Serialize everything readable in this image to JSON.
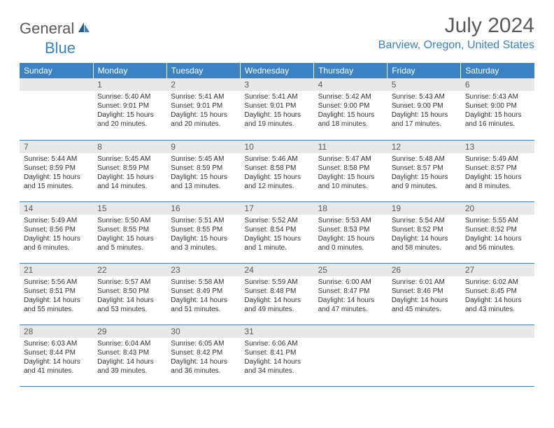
{
  "logo": {
    "text1": "General",
    "text2": "Blue"
  },
  "title": "July 2024",
  "location": "Barview, Oregon, United States",
  "colors": {
    "header_bg": "#3b82c4",
    "header_text": "#ffffff",
    "daynum_bg": "#e8e8e8",
    "border": "#3b82c4",
    "text_gray": "#5a5a5a"
  },
  "weekdays": [
    "Sunday",
    "Monday",
    "Tuesday",
    "Wednesday",
    "Thursday",
    "Friday",
    "Saturday"
  ],
  "weeks": [
    [
      {
        "n": "",
        "sr": "",
        "ss": "",
        "dl": ""
      },
      {
        "n": "1",
        "sr": "5:40 AM",
        "ss": "9:01 PM",
        "dl": "15 hours and 20 minutes."
      },
      {
        "n": "2",
        "sr": "5:41 AM",
        "ss": "9:01 PM",
        "dl": "15 hours and 20 minutes."
      },
      {
        "n": "3",
        "sr": "5:41 AM",
        "ss": "9:01 PM",
        "dl": "15 hours and 19 minutes."
      },
      {
        "n": "4",
        "sr": "5:42 AM",
        "ss": "9:00 PM",
        "dl": "15 hours and 18 minutes."
      },
      {
        "n": "5",
        "sr": "5:43 AM",
        "ss": "9:00 PM",
        "dl": "15 hours and 17 minutes."
      },
      {
        "n": "6",
        "sr": "5:43 AM",
        "ss": "9:00 PM",
        "dl": "15 hours and 16 minutes."
      }
    ],
    [
      {
        "n": "7",
        "sr": "5:44 AM",
        "ss": "8:59 PM",
        "dl": "15 hours and 15 minutes."
      },
      {
        "n": "8",
        "sr": "5:45 AM",
        "ss": "8:59 PM",
        "dl": "15 hours and 14 minutes."
      },
      {
        "n": "9",
        "sr": "5:45 AM",
        "ss": "8:59 PM",
        "dl": "15 hours and 13 minutes."
      },
      {
        "n": "10",
        "sr": "5:46 AM",
        "ss": "8:58 PM",
        "dl": "15 hours and 12 minutes."
      },
      {
        "n": "11",
        "sr": "5:47 AM",
        "ss": "8:58 PM",
        "dl": "15 hours and 10 minutes."
      },
      {
        "n": "12",
        "sr": "5:48 AM",
        "ss": "8:57 PM",
        "dl": "15 hours and 9 minutes."
      },
      {
        "n": "13",
        "sr": "5:49 AM",
        "ss": "8:57 PM",
        "dl": "15 hours and 8 minutes."
      }
    ],
    [
      {
        "n": "14",
        "sr": "5:49 AM",
        "ss": "8:56 PM",
        "dl": "15 hours and 6 minutes."
      },
      {
        "n": "15",
        "sr": "5:50 AM",
        "ss": "8:55 PM",
        "dl": "15 hours and 5 minutes."
      },
      {
        "n": "16",
        "sr": "5:51 AM",
        "ss": "8:55 PM",
        "dl": "15 hours and 3 minutes."
      },
      {
        "n": "17",
        "sr": "5:52 AM",
        "ss": "8:54 PM",
        "dl": "15 hours and 1 minute."
      },
      {
        "n": "18",
        "sr": "5:53 AM",
        "ss": "8:53 PM",
        "dl": "15 hours and 0 minutes."
      },
      {
        "n": "19",
        "sr": "5:54 AM",
        "ss": "8:52 PM",
        "dl": "14 hours and 58 minutes."
      },
      {
        "n": "20",
        "sr": "5:55 AM",
        "ss": "8:52 PM",
        "dl": "14 hours and 56 minutes."
      }
    ],
    [
      {
        "n": "21",
        "sr": "5:56 AM",
        "ss": "8:51 PM",
        "dl": "14 hours and 55 minutes."
      },
      {
        "n": "22",
        "sr": "5:57 AM",
        "ss": "8:50 PM",
        "dl": "14 hours and 53 minutes."
      },
      {
        "n": "23",
        "sr": "5:58 AM",
        "ss": "8:49 PM",
        "dl": "14 hours and 51 minutes."
      },
      {
        "n": "24",
        "sr": "5:59 AM",
        "ss": "8:48 PM",
        "dl": "14 hours and 49 minutes."
      },
      {
        "n": "25",
        "sr": "6:00 AM",
        "ss": "8:47 PM",
        "dl": "14 hours and 47 minutes."
      },
      {
        "n": "26",
        "sr": "6:01 AM",
        "ss": "8:46 PM",
        "dl": "14 hours and 45 minutes."
      },
      {
        "n": "27",
        "sr": "6:02 AM",
        "ss": "8:45 PM",
        "dl": "14 hours and 43 minutes."
      }
    ],
    [
      {
        "n": "28",
        "sr": "6:03 AM",
        "ss": "8:44 PM",
        "dl": "14 hours and 41 minutes."
      },
      {
        "n": "29",
        "sr": "6:04 AM",
        "ss": "8:43 PM",
        "dl": "14 hours and 39 minutes."
      },
      {
        "n": "30",
        "sr": "6:05 AM",
        "ss": "8:42 PM",
        "dl": "14 hours and 36 minutes."
      },
      {
        "n": "31",
        "sr": "6:06 AM",
        "ss": "8:41 PM",
        "dl": "14 hours and 34 minutes."
      },
      {
        "n": "",
        "sr": "",
        "ss": "",
        "dl": ""
      },
      {
        "n": "",
        "sr": "",
        "ss": "",
        "dl": ""
      },
      {
        "n": "",
        "sr": "",
        "ss": "",
        "dl": ""
      }
    ]
  ]
}
